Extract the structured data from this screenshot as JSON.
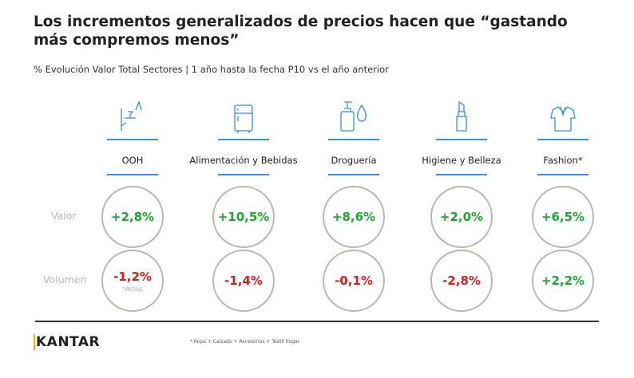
{
  "title": "Los incrementos generalizados de precios hacen que “gastando más compremos menos”",
  "subtitle": "% Evolución Valor Total Sectores | 1 año hasta la fecha P10 vs el año anterior",
  "row_labels": {
    "valor": "Valor",
    "volumen": "Volumen"
  },
  "accent_color": "#3b8ee0",
  "positive_color": "#1fa830",
  "negative_color": "#d81e1e",
  "sectors": [
    {
      "icon": "bar-drinks-icon",
      "label": "OOH",
      "valor": "+2,8%",
      "volumen": "-1,2%",
      "volumen_note": "*Actos"
    },
    {
      "icon": "fridge-icon",
      "label": "Alimentación y Bebidas",
      "valor": "+10,5%",
      "volumen": "-1,4%"
    },
    {
      "icon": "soap-drop-icon",
      "label": "Droguería",
      "valor": "+8,6%",
      "volumen": "-0,1%"
    },
    {
      "icon": "lipstick-icon",
      "label": "Higiene y Belleza",
      "valor": "+2,0%",
      "volumen": "-2,8%"
    },
    {
      "icon": "shirt-icon",
      "label": "Fashion*",
      "valor": "+6,5%",
      "volumen": "+2,2%"
    }
  ],
  "logo": "KANTAR",
  "footnote": "* Ropa + Calzado + Accesorios + Textil hogar"
}
